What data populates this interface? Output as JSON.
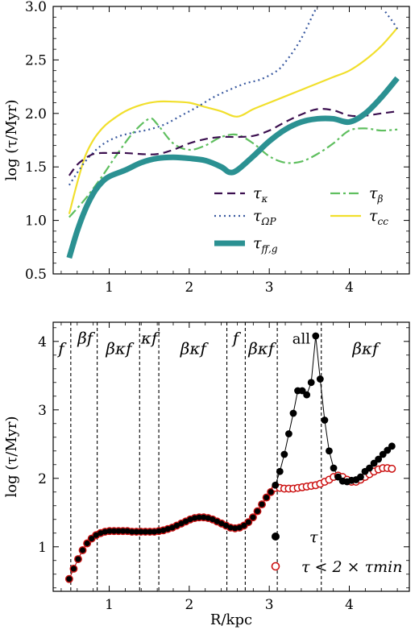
{
  "chart_data": [
    {
      "type": "line",
      "ylabel": "log (τ/Myr)",
      "xlabel": "",
      "xlim": [
        0.3,
        4.75
      ],
      "ylim": [
        0.5,
        3.0
      ],
      "xticks": [
        1,
        2,
        3,
        4
      ],
      "yticks": [
        0.5,
        1.0,
        1.5,
        2.0,
        2.5,
        3.0
      ],
      "ytick_labels": [
        "0.5",
        "1.0",
        "1.5",
        "2.0",
        "2.5",
        "3.0"
      ],
      "xtick_labels": [
        "1",
        "2",
        "3",
        "4"
      ],
      "series": [
        {
          "name": "τκ",
          "label_main": "τ",
          "label_sub": "κ",
          "color": "#3b0f4f",
          "dash": "10,6",
          "width": 2.2,
          "x": [
            0.5,
            0.6,
            0.7,
            0.8,
            0.9,
            1.0,
            1.2,
            1.4,
            1.6,
            1.8,
            2.0,
            2.2,
            2.4,
            2.6,
            2.8,
            3.0,
            3.2,
            3.4,
            3.6,
            3.8,
            4.0,
            4.2,
            4.4,
            4.6
          ],
          "y": [
            1.42,
            1.52,
            1.58,
            1.62,
            1.63,
            1.63,
            1.63,
            1.62,
            1.62,
            1.66,
            1.72,
            1.76,
            1.78,
            1.78,
            1.79,
            1.84,
            1.92,
            1.99,
            2.04,
            2.03,
            1.98,
            1.98,
            2.0,
            2.02
          ]
        },
        {
          "name": "τΩP",
          "label_main": "τ",
          "label_sub": "ΩP",
          "color": "#3a5aa0",
          "dash": "2,4",
          "width": 2.2,
          "x": [
            0.5,
            0.7,
            0.9,
            1.1,
            1.3,
            1.5,
            1.7,
            1.9,
            2.1,
            2.3,
            2.5,
            2.7,
            2.9,
            3.1,
            3.2,
            3.3,
            3.4,
            3.5,
            3.55,
            3.6
          ],
          "y": [
            1.33,
            1.55,
            1.7,
            1.78,
            1.82,
            1.85,
            1.9,
            1.98,
            2.06,
            2.15,
            2.22,
            2.28,
            2.32,
            2.4,
            2.48,
            2.58,
            2.7,
            2.85,
            2.93,
            3.0
          ]
        },
        {
          "name": "τff,g",
          "label_main": "τ",
          "label_sub": "ff,g",
          "color": "#2b9192",
          "dash": "",
          "width": 7,
          "x": [
            0.5,
            0.6,
            0.7,
            0.8,
            0.9,
            1.0,
            1.2,
            1.4,
            1.6,
            1.8,
            2.0,
            2.2,
            2.4,
            2.5,
            2.6,
            2.8,
            3.0,
            3.2,
            3.4,
            3.6,
            3.8,
            4.0,
            4.2,
            4.4,
            4.6
          ],
          "y": [
            0.65,
            0.9,
            1.1,
            1.25,
            1.35,
            1.41,
            1.47,
            1.54,
            1.58,
            1.59,
            1.58,
            1.56,
            1.5,
            1.45,
            1.47,
            1.6,
            1.74,
            1.85,
            1.92,
            1.95,
            1.95,
            1.92,
            2.0,
            2.15,
            2.33
          ]
        },
        {
          "name": "τβ",
          "label_main": "τ",
          "label_sub": "β",
          "color": "#5fbf5f",
          "dash": "12,4,3,4",
          "width": 2.2,
          "x": [
            0.5,
            0.7,
            0.9,
            1.1,
            1.3,
            1.5,
            1.6,
            1.8,
            2.0,
            2.2,
            2.4,
            2.6,
            2.8,
            3.0,
            3.2,
            3.4,
            3.6,
            3.8,
            4.0,
            4.2,
            4.4,
            4.6
          ],
          "y": [
            1.03,
            1.2,
            1.4,
            1.62,
            1.82,
            1.95,
            1.9,
            1.72,
            1.66,
            1.7,
            1.78,
            1.8,
            1.72,
            1.6,
            1.54,
            1.55,
            1.62,
            1.72,
            1.84,
            1.86,
            1.84,
            1.85
          ]
        },
        {
          "name": "τcc",
          "label_main": "τ",
          "label_sub": "cc",
          "color": "#f1df2c",
          "dash": "",
          "width": 2.2,
          "x": [
            0.5,
            0.6,
            0.7,
            0.8,
            0.9,
            1.0,
            1.2,
            1.4,
            1.6,
            1.8,
            2.0,
            2.2,
            2.4,
            2.6,
            2.8,
            3.0,
            3.2,
            3.4,
            3.6,
            3.8,
            4.0,
            4.2,
            4.4,
            4.6
          ],
          "y": [
            1.06,
            1.35,
            1.6,
            1.75,
            1.85,
            1.92,
            2.02,
            2.08,
            2.11,
            2.11,
            2.1,
            2.06,
            2.02,
            1.97,
            2.04,
            2.1,
            2.16,
            2.22,
            2.28,
            2.34,
            2.4,
            2.5,
            2.63,
            2.8
          ]
        }
      ],
      "extra_segments": [
        {
          "series": "τΩP",
          "x": [
            4.45,
            4.5,
            4.55,
            4.6
          ],
          "y": [
            2.95,
            2.9,
            2.85,
            2.79
          ]
        }
      ],
      "legend_layout": "two-column, lower-right"
    },
    {
      "type": "scatter",
      "xlabel": "R/kpc",
      "ylabel": "log (τ/Myr)",
      "xlim": [
        0.3,
        4.75
      ],
      "ylim": [
        0.35,
        4.28
      ],
      "xticks": [
        1,
        2,
        3,
        4
      ],
      "yticks": [
        1,
        2,
        3,
        4
      ],
      "xtick_labels": [
        "1",
        "2",
        "3",
        "4"
      ],
      "ytick_labels": [
        "1",
        "2",
        "3",
        "4"
      ],
      "series": [
        {
          "name": "τ",
          "marker": "filled-circle",
          "color": "#000000",
          "connected": true,
          "x": [
            0.5,
            0.556,
            0.612,
            0.668,
            0.724,
            0.78,
            0.836,
            0.892,
            0.948,
            1.004,
            1.06,
            1.116,
            1.172,
            1.228,
            1.284,
            1.34,
            1.396,
            1.452,
            1.508,
            1.564,
            1.62,
            1.676,
            1.732,
            1.788,
            1.844,
            1.9,
            1.956,
            2.012,
            2.068,
            2.124,
            2.18,
            2.236,
            2.292,
            2.348,
            2.404,
            2.46,
            2.516,
            2.572,
            2.628,
            2.684,
            2.74,
            2.796,
            2.852,
            2.908,
            2.964,
            3.02,
            3.076,
            3.132,
            3.188,
            3.244,
            3.3,
            3.356,
            3.412,
            3.468,
            3.524,
            3.58,
            3.636,
            3.692,
            3.748,
            3.804,
            3.86,
            3.916,
            3.972,
            4.028,
            4.084,
            4.14,
            4.196,
            4.252,
            4.308,
            4.364,
            4.42,
            4.476,
            4.532
          ],
          "y": [
            0.53,
            0.68,
            0.82,
            0.95,
            1.05,
            1.12,
            1.17,
            1.2,
            1.22,
            1.23,
            1.23,
            1.23,
            1.23,
            1.23,
            1.22,
            1.22,
            1.22,
            1.22,
            1.22,
            1.22,
            1.23,
            1.24,
            1.26,
            1.28,
            1.31,
            1.34,
            1.37,
            1.4,
            1.42,
            1.43,
            1.43,
            1.42,
            1.4,
            1.37,
            1.34,
            1.31,
            1.28,
            1.27,
            1.28,
            1.31,
            1.36,
            1.43,
            1.52,
            1.62,
            1.72,
            1.8,
            1.9,
            2.1,
            2.35,
            2.65,
            2.95,
            3.28,
            3.28,
            3.22,
            3.4,
            4.08,
            3.45,
            2.85,
            2.4,
            2.15,
            2.02,
            1.96,
            1.95,
            1.97,
            1.98,
            2.02,
            2.1,
            2.15,
            2.22,
            2.28,
            2.35,
            2.41,
            2.47
          ]
        },
        {
          "name": "τ < 2 × τmin",
          "marker": "open-circle",
          "color": "#cc1111",
          "connected": true,
          "x": [
            0.5,
            0.556,
            0.612,
            0.668,
            0.724,
            0.78,
            0.836,
            0.892,
            0.948,
            1.004,
            1.06,
            1.116,
            1.172,
            1.228,
            1.284,
            1.34,
            1.396,
            1.452,
            1.508,
            1.564,
            1.62,
            1.676,
            1.732,
            1.788,
            1.844,
            1.9,
            1.956,
            2.012,
            2.068,
            2.124,
            2.18,
            2.236,
            2.292,
            2.348,
            2.404,
            2.46,
            2.516,
            2.572,
            2.628,
            2.684,
            2.74,
            2.796,
            2.852,
            2.908,
            2.964,
            3.02,
            3.076,
            3.132,
            3.188,
            3.244,
            3.3,
            3.356,
            3.412,
            3.468,
            3.524,
            3.58,
            3.636,
            3.692,
            3.748,
            3.804,
            3.86,
            3.916,
            3.972,
            4.028,
            4.084,
            4.14,
            4.196,
            4.252,
            4.308,
            4.364,
            4.42,
            4.476,
            4.532
          ],
          "y": [
            0.53,
            0.68,
            0.82,
            0.95,
            1.05,
            1.12,
            1.17,
            1.2,
            1.22,
            1.23,
            1.23,
            1.23,
            1.23,
            1.23,
            1.22,
            1.22,
            1.22,
            1.22,
            1.22,
            1.22,
            1.23,
            1.24,
            1.26,
            1.28,
            1.31,
            1.34,
            1.37,
            1.4,
            1.42,
            1.43,
            1.43,
            1.42,
            1.4,
            1.37,
            1.34,
            1.31,
            1.28,
            1.27,
            1.28,
            1.31,
            1.36,
            1.43,
            1.52,
            1.62,
            1.72,
            1.8,
            1.86,
            1.86,
            1.85,
            1.85,
            1.85,
            1.86,
            1.87,
            1.88,
            1.89,
            1.9,
            1.92,
            1.95,
            1.98,
            2.02,
            2.04,
            2.02,
            1.98,
            1.95,
            1.95,
            1.98,
            2.02,
            2.06,
            2.1,
            2.13,
            2.15,
            2.15,
            2.14
          ]
        }
      ],
      "region_boundaries": [
        0.52,
        0.85,
        1.38,
        1.62,
        2.47,
        2.7,
        3.1,
        3.65
      ],
      "region_labels": [
        {
          "x": 0.4,
          "y": 3.9,
          "text": "f",
          "style": "italic"
        },
        {
          "x": 0.7,
          "y": 4.05,
          "text": "βf",
          "style": "italic"
        },
        {
          "x": 1.12,
          "y": 3.9,
          "text": "βκf",
          "style": "italic"
        },
        {
          "x": 1.5,
          "y": 4.05,
          "text": "κf",
          "style": "italic"
        },
        {
          "x": 2.05,
          "y": 3.9,
          "text": "βκf",
          "style": "italic"
        },
        {
          "x": 2.58,
          "y": 4.05,
          "text": "f",
          "style": "italic"
        },
        {
          "x": 2.9,
          "y": 3.9,
          "text": "βκf",
          "style": "italic"
        },
        {
          "x": 3.4,
          "y": 4.05,
          "text": "all",
          "style": "upright"
        },
        {
          "x": 4.2,
          "y": 3.9,
          "text": "βκf",
          "style": "italic"
        }
      ],
      "legend_layout": "lower-right"
    }
  ]
}
